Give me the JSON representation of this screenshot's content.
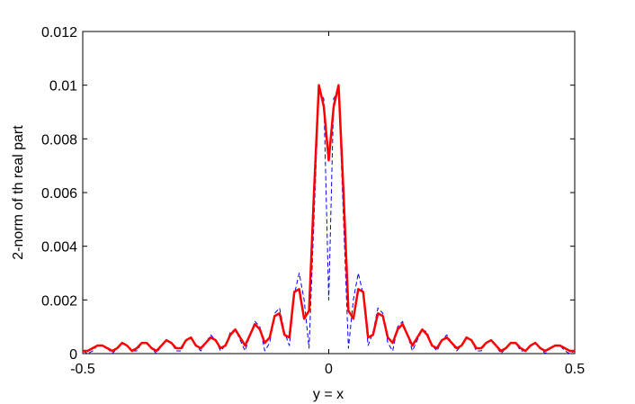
{
  "chart_data": {
    "type": "line",
    "xlabel": "y = x",
    "ylabel": "2-norm of th real part",
    "x": [
      -0.5,
      -0.49,
      -0.48,
      -0.47,
      -0.46,
      -0.45,
      -0.44,
      -0.43,
      -0.42,
      -0.41,
      -0.4,
      -0.39,
      -0.38,
      -0.37,
      -0.36,
      -0.35,
      -0.34,
      -0.33,
      -0.32,
      -0.31,
      -0.3,
      -0.29,
      -0.28,
      -0.27,
      -0.26,
      -0.25,
      -0.24,
      -0.23,
      -0.22,
      -0.21,
      -0.2,
      -0.19,
      -0.18,
      -0.17,
      -0.16,
      -0.15,
      -0.14,
      -0.13,
      -0.12,
      -0.11,
      -0.1,
      -0.09,
      -0.08,
      -0.07,
      -0.06,
      -0.05,
      -0.04,
      -0.03,
      -0.02,
      -0.01,
      0,
      0.01,
      0.02,
      0.03,
      0.04,
      0.05,
      0.06,
      0.07,
      0.08,
      0.09,
      0.1,
      0.11,
      0.12,
      0.13,
      0.14,
      0.15,
      0.16,
      0.17,
      0.18,
      0.19,
      0.2,
      0.21,
      0.22,
      0.23,
      0.24,
      0.25,
      0.26,
      0.27,
      0.28,
      0.29,
      0.3,
      0.31,
      0.32,
      0.33,
      0.34,
      0.35,
      0.36,
      0.37,
      0.38,
      0.39,
      0.4,
      0.41,
      0.42,
      0.43,
      0.44,
      0.45,
      0.46,
      0.47,
      0.48,
      0.49,
      0.5
    ],
    "series": [
      {
        "color": "#0000ff",
        "dash": true,
        "width": 1,
        "values": [
          0.0001,
          0,
          0.0001,
          0.0003,
          0.0003,
          0.0002,
          0,
          0.0002,
          0.0004,
          0.0003,
          0.0001,
          0.0001,
          0.0004,
          0.0004,
          0.0002,
          0,
          0.0003,
          0.0005,
          0.0004,
          0.0001,
          0.0001,
          0.0005,
          0.0006,
          0.0003,
          0.0001,
          0.0004,
          0.0007,
          0.0005,
          0.0001,
          0.0003,
          0.0008,
          0.0009,
          0.0005,
          0.0001,
          0.0007,
          0.0012,
          0.001,
          0.0001,
          0.0004,
          0.0015,
          0.0017,
          0.0008,
          0.0003,
          0.0022,
          0.003,
          0.002,
          0.0002,
          0.005,
          0.0098,
          0.0095,
          0.002,
          0.0095,
          0.0098,
          0.005,
          0.0002,
          0.002,
          0.003,
          0.0022,
          0.0003,
          0.0008,
          0.0017,
          0.0015,
          0.0004,
          0.0001,
          0.001,
          0.0012,
          0.0007,
          0.0001,
          0.0005,
          0.0009,
          0.0008,
          0.0003,
          0.0001,
          0.0005,
          0.0007,
          0.0004,
          0.0001,
          0.0003,
          0.0006,
          0.0005,
          0.0001,
          0.0001,
          0.0004,
          0.0005,
          0.0003,
          0,
          0.0002,
          0.0004,
          0.0004,
          0.0001,
          0.0001,
          0.0003,
          0.0004,
          0.0002,
          0,
          0.0002,
          0.0003,
          0.0003,
          0.0001,
          0,
          0.0001
        ]
      },
      {
        "color": "#ff0000",
        "dash": false,
        "width": 2.5,
        "values": [
          0.0001,
          0.0001,
          0.0002,
          0.0003,
          0.0003,
          0.0002,
          0.0001,
          0.0002,
          0.0004,
          0.0003,
          0.0001,
          0.0002,
          0.0004,
          0.0004,
          0.0002,
          0.0001,
          0.0003,
          0.0005,
          0.0004,
          0.0002,
          0.0002,
          0.0005,
          0.0006,
          0.0003,
          0.0002,
          0.0004,
          0.0006,
          0.0005,
          0.0002,
          0.0003,
          0.0007,
          0.0009,
          0.0006,
          0.0003,
          0.0007,
          0.0011,
          0.0009,
          0.0004,
          0.0006,
          0.0014,
          0.0015,
          0.0007,
          0.0006,
          0.0023,
          0.0024,
          0.0013,
          0.0016,
          0.006,
          0.01,
          0.0092,
          0.0072,
          0.0092,
          0.01,
          0.006,
          0.0016,
          0.0013,
          0.0024,
          0.0023,
          0.0006,
          0.0007,
          0.0015,
          0.0014,
          0.0006,
          0.0004,
          0.0009,
          0.0011,
          0.0007,
          0.0003,
          0.0006,
          0.0009,
          0.0007,
          0.0003,
          0.0002,
          0.0005,
          0.0006,
          0.0004,
          0.0002,
          0.0003,
          0.0006,
          0.0005,
          0.0002,
          0.0002,
          0.0004,
          0.0005,
          0.0003,
          0.0001,
          0.0002,
          0.0004,
          0.0004,
          0.0002,
          0.0001,
          0.0003,
          0.0004,
          0.0002,
          0.0001,
          0.0002,
          0.0003,
          0.0003,
          0.0002,
          0.0001,
          0.0001
        ]
      }
    ],
    "xlim": [
      -0.5,
      0.5
    ],
    "xticks": [
      -0.5,
      0,
      0.5
    ],
    "ylim": [
      0,
      0.012
    ],
    "yticks": [
      0,
      0.002,
      0.004,
      0.006,
      0.008,
      0.01,
      0.012
    ]
  }
}
